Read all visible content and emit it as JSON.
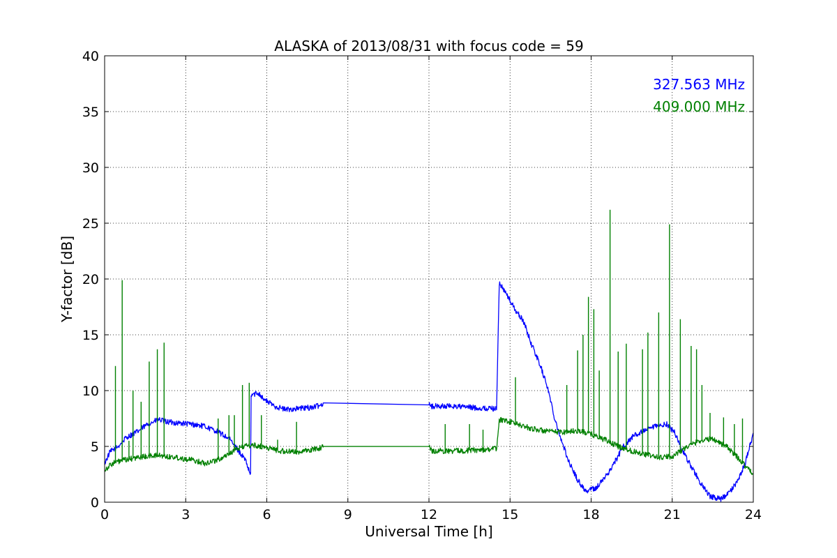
{
  "chart_data": {
    "type": "line",
    "title": "ALASKA of 2013/08/31 with focus code = 59",
    "xlabel": "Universal Time [h]",
    "ylabel": "Y-factor [dB]",
    "xlim": [
      0,
      24
    ],
    "ylim": [
      0,
      40
    ],
    "xticks": [
      0,
      3,
      6,
      9,
      12,
      15,
      18,
      21,
      24
    ],
    "yticks": [
      0,
      5,
      10,
      15,
      20,
      25,
      30,
      35,
      40
    ],
    "grid": true,
    "legend_position": "top-right",
    "series": [
      {
        "name": "327.563 MHz",
        "color": "#0000ff",
        "x": [
          0,
          0.2,
          0.5,
          0.8,
          1.2,
          1.6,
          2.0,
          2.3,
          2.7,
          3.2,
          3.7,
          4.2,
          4.6,
          4.9,
          5.2,
          5.4,
          5.42,
          5.7,
          5.9,
          6.3,
          6.7,
          7.2,
          7.7,
          8.0,
          8.1,
          12.0,
          12.1,
          12.5,
          13.0,
          13.5,
          14.0,
          14.5,
          14.6,
          14.65,
          14.9,
          15.2,
          15.5,
          15.8,
          16.1,
          16.4,
          16.6,
          16.9,
          17.2,
          17.5,
          17.8,
          18.2,
          18.6,
          18.9,
          19.2,
          19.6,
          20.0,
          20.4,
          20.8,
          21.1,
          21.4,
          21.8,
          22.1,
          22.4,
          22.8,
          23.1,
          23.4,
          23.7,
          24.0
        ],
        "y": [
          3.5,
          4.5,
          5.0,
          5.8,
          6.3,
          7.0,
          7.4,
          7.2,
          7.1,
          7.0,
          6.8,
          6.3,
          5.7,
          4.8,
          3.8,
          2.4,
          9.6,
          9.8,
          9.2,
          8.6,
          8.3,
          8.4,
          8.5,
          8.7,
          8.9,
          8.9,
          8.6,
          8.6,
          8.6,
          8.5,
          8.4,
          8.4,
          19.5,
          19.5,
          18.5,
          17.2,
          16.2,
          14.1,
          12.4,
          10.2,
          8.0,
          5.5,
          3.5,
          2.0,
          1.0,
          1.3,
          2.5,
          3.7,
          5.0,
          6.0,
          6.4,
          6.8,
          7.0,
          6.2,
          4.5,
          2.8,
          1.5,
          0.5,
          0.3,
          0.8,
          1.8,
          3.5,
          6.2
        ],
        "spikes": []
      },
      {
        "name": "409.000 MHz",
        "color": "#008000",
        "x": [
          0,
          0.3,
          0.6,
          1.0,
          1.5,
          2.0,
          2.3,
          2.7,
          3.2,
          3.7,
          4.2,
          4.7,
          5.1,
          5.5,
          6.0,
          6.5,
          7.0,
          7.5,
          8.0,
          8.1,
          12.0,
          12.1,
          13.0,
          14.0,
          14.5,
          14.6,
          15.0,
          15.5,
          16.0,
          16.5,
          17.0,
          17.5,
          18.0,
          18.5,
          19.0,
          19.5,
          20.0,
          20.5,
          21.0,
          21.5,
          22.0,
          22.5,
          23.0,
          23.5,
          24.0
        ],
        "y": [
          2.9,
          3.5,
          3.7,
          3.9,
          4.1,
          4.2,
          4.1,
          4.0,
          3.8,
          3.5,
          3.8,
          4.5,
          5.0,
          5.1,
          4.9,
          4.6,
          4.5,
          4.6,
          4.9,
          5.0,
          5.0,
          4.6,
          4.6,
          4.7,
          4.8,
          7.4,
          7.2,
          6.8,
          6.5,
          6.3,
          6.3,
          6.4,
          6.1,
          5.6,
          5.0,
          4.6,
          4.3,
          4.0,
          4.1,
          4.9,
          5.5,
          5.7,
          5.0,
          3.8,
          2.5
        ],
        "spikes": [
          [
            0.4,
            12.2
          ],
          [
            0.65,
            19.9
          ],
          [
            0.9,
            5.5
          ],
          [
            1.05,
            10.0
          ],
          [
            1.35,
            9.0
          ],
          [
            1.65,
            12.6
          ],
          [
            1.95,
            13.7
          ],
          [
            2.2,
            14.3
          ],
          [
            4.2,
            7.5
          ],
          [
            4.6,
            7.8
          ],
          [
            4.8,
            7.8
          ],
          [
            5.1,
            10.5
          ],
          [
            5.35,
            10.7
          ],
          [
            5.8,
            7.8
          ],
          [
            6.4,
            5.6
          ],
          [
            7.1,
            7.2
          ],
          [
            12.6,
            7.0
          ],
          [
            13.5,
            7.0
          ],
          [
            14.0,
            6.5
          ],
          [
            15.2,
            11.2
          ],
          [
            16.0,
            6.6
          ],
          [
            17.1,
            10.5
          ],
          [
            17.5,
            13.6
          ],
          [
            17.7,
            15.0
          ],
          [
            17.9,
            18.4
          ],
          [
            18.1,
            17.3
          ],
          [
            18.3,
            11.8
          ],
          [
            18.7,
            26.2
          ],
          [
            19.0,
            13.5
          ],
          [
            19.3,
            14.2
          ],
          [
            19.9,
            13.7
          ],
          [
            20.1,
            15.2
          ],
          [
            20.5,
            17.0
          ],
          [
            20.9,
            24.9
          ],
          [
            21.3,
            16.4
          ],
          [
            21.7,
            14.0
          ],
          [
            21.9,
            13.7
          ],
          [
            22.1,
            10.5
          ],
          [
            22.4,
            8.0
          ],
          [
            22.9,
            7.6
          ],
          [
            23.3,
            7.0
          ],
          [
            23.6,
            7.5
          ],
          [
            23.9,
            3.0
          ]
        ]
      }
    ]
  }
}
